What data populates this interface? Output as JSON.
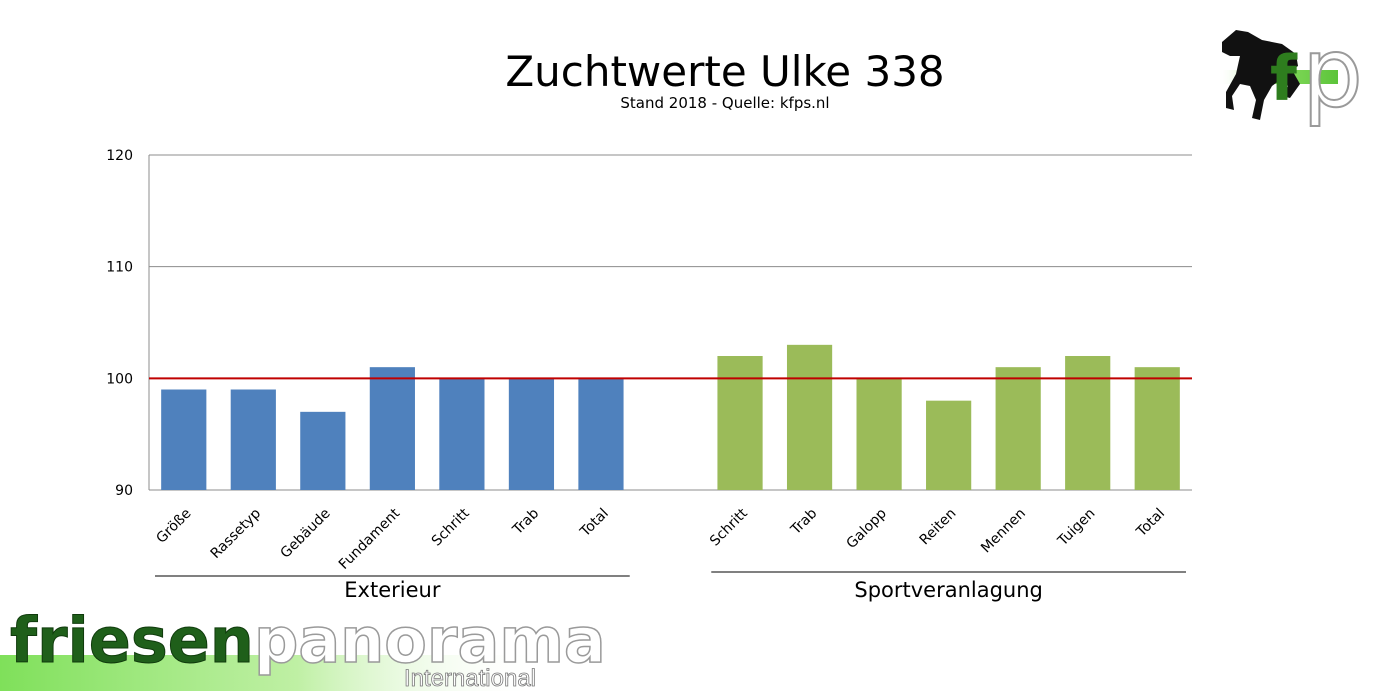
{
  "chart_data": {
    "type": "bar",
    "title": "Zuchtwerte Ulke 338",
    "subtitle": "Stand 2018 - Quelle: kfps.nl",
    "ylim": [
      90,
      120
    ],
    "yticks": [
      "120",
      "110",
      "100",
      "90"
    ],
    "reference_line": 100,
    "grid": true,
    "groups": [
      {
        "name": "Exterieur",
        "color": "#4F81BD",
        "categories": [
          "Größe",
          "Rassetyp",
          "Gebäude",
          "Fundament",
          "Schritt",
          "Trab",
          "Total"
        ],
        "values": [
          99,
          99,
          97,
          101,
          100,
          100,
          100
        ]
      },
      {
        "name": "Sportveranlagung",
        "color": "#9BBB59",
        "categories": [
          "Schritt",
          "Trab",
          "Galopp",
          "Reiten",
          "Mennen",
          "Tuigen",
          "Total"
        ],
        "values": [
          102,
          103,
          100,
          98,
          101,
          102,
          101
        ]
      }
    ],
    "reference_line_color": "#C00000"
  },
  "branding": {
    "logo_letters": "fp",
    "main_word_1": "friesen",
    "main_word_2": "panorama",
    "sub_word": "International",
    "green_dark": "#1F5F1A",
    "green_light": "#8FE065"
  }
}
